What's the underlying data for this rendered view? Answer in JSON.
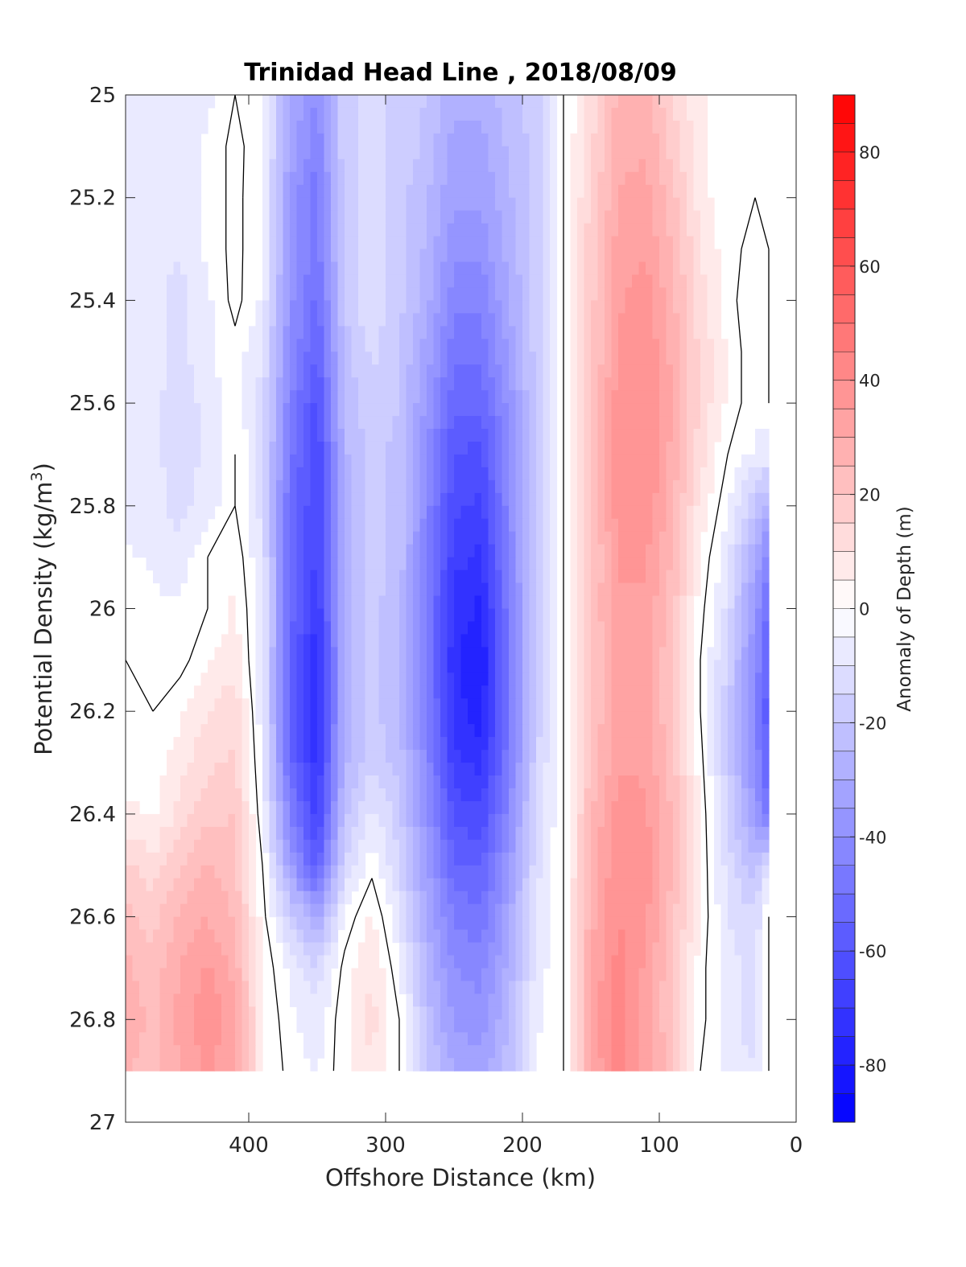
{
  "chart_data": {
    "type": "heatmap",
    "subtype": "filled-contour",
    "title": "Trinidad Head Line , 2018/08/09",
    "xlabel": "Offshore Distance (km)",
    "ylabel_main": "Potential Density (kg/m",
    "ylabel_sup": "3",
    "ylabel_close": ")",
    "colorbar_label": "Anomaly of Depth (m)",
    "x_reversed": true,
    "y_reversed": true,
    "xlim": [
      490,
      0
    ],
    "ylim": [
      25,
      27
    ],
    "x_ticks": [
      400,
      300,
      200,
      100,
      0
    ],
    "x_tick_labels": [
      "400",
      "300",
      "200",
      "100",
      "0"
    ],
    "y_ticks": [
      25,
      25.2,
      25.4,
      25.6,
      25.8,
      26,
      26.2,
      26.4,
      26.6,
      26.8,
      27
    ],
    "y_tick_labels": [
      "25",
      "25.2",
      "25.4",
      "25.6",
      "25.8",
      "26",
      "26.2",
      "26.4",
      "26.6",
      "26.8",
      "27"
    ],
    "colorbar_range": [
      -90,
      90
    ],
    "colorbar_ticks": [
      80,
      60,
      40,
      20,
      0,
      -20,
      -40,
      -60,
      -80
    ],
    "colorbar_tick_labels": [
      "80",
      "60",
      "40",
      "20",
      "0",
      "-20",
      "-40",
      "-60",
      "-80"
    ],
    "colorbar_step": 5,
    "colormap": {
      "negative": "#0000ff",
      "zero": "#ffffff",
      "positive": "#ff0000"
    },
    "data_extent": {
      "x": [
        490,
        20
      ],
      "y": [
        25,
        26.9
      ]
    },
    "grid": false,
    "x": [
      490,
      470,
      450,
      430,
      410,
      390,
      370,
      350,
      330,
      310,
      290,
      270,
      250,
      230,
      210,
      190,
      170,
      150,
      130,
      110,
      90,
      70,
      50,
      30,
      20
    ],
    "y": [
      25,
      25.1,
      25.2,
      25.3,
      25.4,
      25.5,
      25.6,
      25.7,
      25.8,
      25.9,
      26,
      26.1,
      26.2,
      26.3,
      26.4,
      26.5,
      26.6,
      26.7,
      26.8,
      26.9
    ],
    "z": [
      [
        -8,
        -6,
        -8,
        -6,
        0,
        -4,
        -30,
        -40,
        -16,
        -14,
        -16,
        -20,
        -28,
        -28,
        -22,
        -18,
        0,
        12,
        26,
        26,
        15,
        6,
        0,
        0,
        0
      ],
      [
        -8,
        -6,
        -8,
        -4,
        2,
        -4,
        -32,
        -44,
        -16,
        -14,
        -16,
        -22,
        -32,
        -32,
        -24,
        -18,
        0,
        14,
        28,
        30,
        18,
        6,
        0,
        0,
        0
      ],
      [
        -8,
        -6,
        -8,
        -4,
        2,
        -5,
        -36,
        -48,
        -18,
        -10,
        -18,
        -24,
        -34,
        -34,
        -26,
        -18,
        0,
        16,
        30,
        32,
        22,
        8,
        0,
        0,
        0
      ],
      [
        -8,
        -8,
        -10,
        -4,
        2,
        -5,
        -36,
        -48,
        -18,
        -10,
        -18,
        -26,
        -38,
        -38,
        -28,
        -18,
        0,
        18,
        32,
        34,
        24,
        10,
        2,
        -2,
        0
      ],
      [
        -8,
        -8,
        -12,
        -6,
        2,
        -6,
        -38,
        -52,
        -20,
        -10,
        -18,
        -28,
        -44,
        -44,
        -30,
        -18,
        0,
        18,
        34,
        38,
        26,
        12,
        2,
        -4,
        0
      ],
      [
        -8,
        -8,
        -12,
        -6,
        -2,
        -10,
        -40,
        -56,
        -22,
        -14,
        -20,
        -32,
        -48,
        -48,
        -34,
        -18,
        0,
        18,
        36,
        40,
        28,
        14,
        4,
        -4,
        0
      ],
      [
        -6,
        -8,
        -14,
        -8,
        -2,
        -12,
        -44,
        -62,
        -24,
        -16,
        -20,
        -36,
        -54,
        -54,
        -38,
        -18,
        0,
        18,
        38,
        40,
        30,
        14,
        4,
        -4,
        0
      ],
      [
        -6,
        -8,
        -14,
        -8,
        0,
        -12,
        -48,
        -66,
        -26,
        -18,
        -22,
        -40,
        -60,
        -62,
        -40,
        -18,
        0,
        18,
        40,
        40,
        28,
        12,
        0,
        -6,
        -8
      ],
      [
        -8,
        -8,
        -12,
        -8,
        0,
        -12,
        -50,
        -66,
        -28,
        -18,
        -22,
        -42,
        -64,
        -66,
        -42,
        -18,
        0,
        18,
        38,
        40,
        26,
        8,
        -4,
        -20,
        -30
      ],
      [
        -4,
        -6,
        -8,
        0,
        4,
        -10,
        -50,
        -66,
        -28,
        -18,
        -22,
        -44,
        -68,
        -72,
        -44,
        -18,
        0,
        18,
        36,
        36,
        24,
        4,
        -8,
        -30,
        -44
      ],
      [
        0,
        -4,
        -4,
        0,
        6,
        -8,
        -52,
        -70,
        -28,
        -18,
        -24,
        -46,
        -72,
        -76,
        -46,
        -18,
        0,
        20,
        34,
        34,
        22,
        2,
        -12,
        -36,
        -54
      ],
      [
        0,
        -4,
        -2,
        4,
        8,
        -8,
        -54,
        -74,
        -28,
        -18,
        -24,
        -46,
        -74,
        -80,
        -48,
        -18,
        0,
        20,
        32,
        32,
        20,
        0,
        -16,
        -40,
        -58
      ],
      [
        2,
        0,
        4,
        10,
        14,
        -8,
        -56,
        -76,
        -28,
        -18,
        -24,
        -44,
        -72,
        -78,
        -48,
        -18,
        0,
        20,
        32,
        32,
        20,
        0,
        -18,
        -42,
        -60
      ],
      [
        4,
        2,
        8,
        14,
        16,
        -6,
        -52,
        -72,
        -26,
        -16,
        -22,
        -42,
        -68,
        -72,
        -46,
        -16,
        0,
        22,
        34,
        34,
        22,
        2,
        -18,
        -40,
        -58
      ],
      [
        6,
        4,
        12,
        18,
        20,
        -4,
        -44,
        -68,
        -22,
        -8,
        -18,
        -38,
        -62,
        -64,
        -42,
        -14,
        0,
        24,
        38,
        36,
        24,
        4,
        -16,
        -34,
        -50
      ],
      [
        16,
        12,
        20,
        26,
        22,
        0,
        -34,
        -58,
        -14,
        -2,
        -14,
        -34,
        -54,
        -56,
        -36,
        -12,
        0,
        26,
        40,
        38,
        24,
        4,
        -12,
        -24,
        -10
      ],
      [
        22,
        18,
        26,
        30,
        24,
        2,
        -16,
        -32,
        -4,
        6,
        -10,
        -30,
        -46,
        -48,
        -32,
        -10,
        0,
        28,
        40,
        36,
        22,
        4,
        -10,
        -14,
        0
      ],
      [
        26,
        22,
        30,
        36,
        28,
        4,
        -6,
        -14,
        2,
        10,
        -4,
        -26,
        -40,
        -42,
        -28,
        -8,
        0,
        30,
        42,
        34,
        20,
        2,
        -8,
        -12,
        0
      ],
      [
        28,
        24,
        32,
        40,
        32,
        6,
        -4,
        -8,
        4,
        12,
        0,
        -22,
        -36,
        -38,
        -26,
        -6,
        0,
        32,
        44,
        32,
        20,
        2,
        -8,
        -12,
        0
      ],
      [
        26,
        22,
        30,
        36,
        30,
        6,
        -2,
        -6,
        4,
        10,
        0,
        -18,
        -30,
        -32,
        -22,
        -4,
        0,
        30,
        42,
        34,
        22,
        0,
        -8,
        -10,
        0
      ]
    ]
  }
}
